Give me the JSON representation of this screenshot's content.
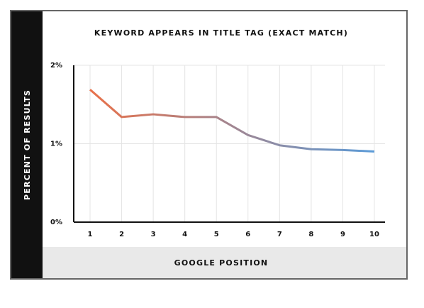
{
  "chart_data": {
    "type": "line",
    "title": "KEYWORD APPEARS IN TITLE TAG (EXACT MATCH)",
    "x_label": "GOOGLE POSITION",
    "y_label": "PERCENT OF RESULTS",
    "categories": [
      "1",
      "2",
      "3",
      "4",
      "5",
      "6",
      "7",
      "8",
      "9",
      "10"
    ],
    "values": [
      1.69,
      1.34,
      1.375,
      1.34,
      1.34,
      1.11,
      0.98,
      0.93,
      0.92,
      0.9
    ],
    "colors": [
      "#e8714a",
      "#5b9bd8"
    ],
    "ylim": [
      0,
      2
    ],
    "yticks": [
      {
        "value": 0,
        "label": "0%"
      },
      {
        "value": 1,
        "label": "1%"
      },
      {
        "value": 2,
        "label": "2%"
      }
    ],
    "grid": true
  }
}
